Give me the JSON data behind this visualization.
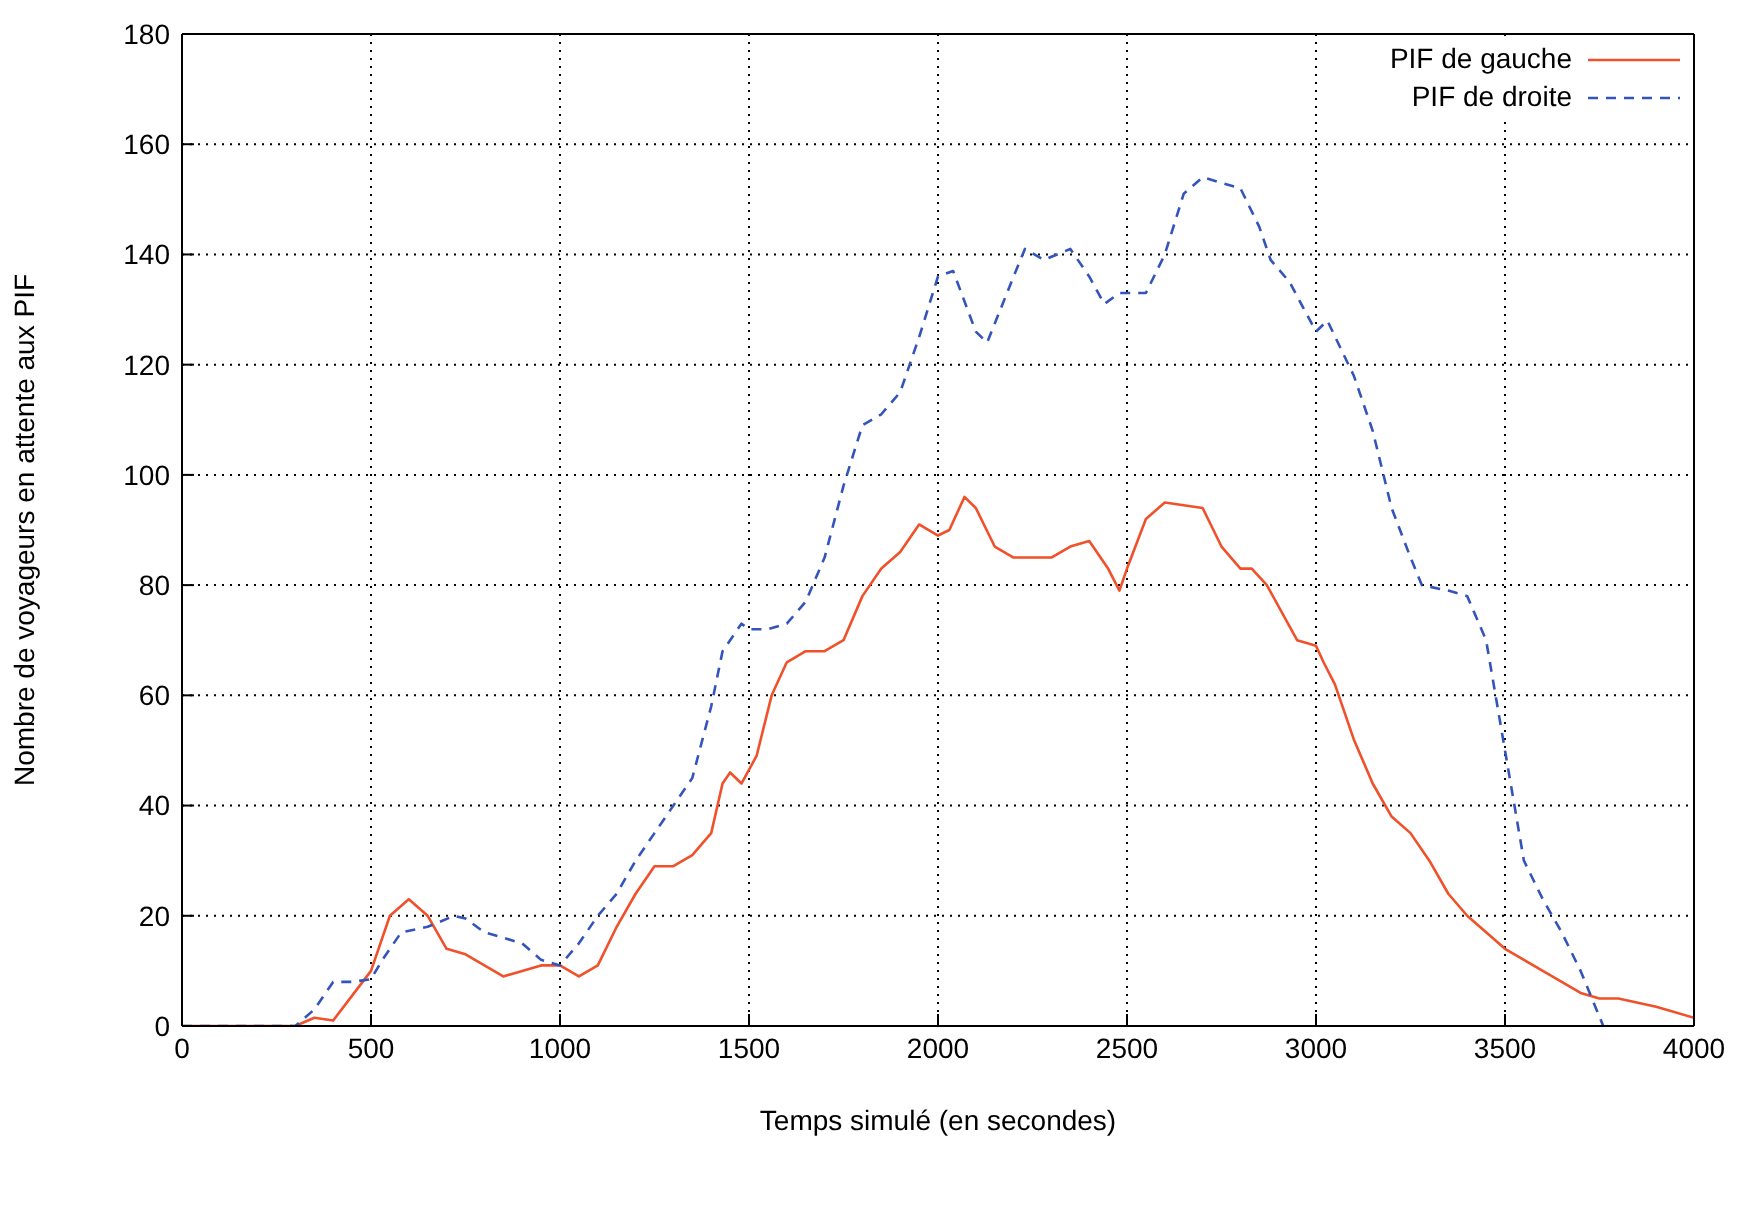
{
  "chart_data": {
    "type": "line",
    "xlabel": "Temps simulé (en secondes)",
    "ylabel": "Nombre de voyageurs en attente aux PIF",
    "xlim": [
      0,
      4000
    ],
    "xticks": [
      0,
      500,
      1000,
      1500,
      2000,
      2500,
      3000,
      3500,
      4000
    ],
    "ylim": [
      0,
      180
    ],
    "yticks": [
      0,
      20,
      40,
      60,
      80,
      100,
      120,
      140,
      160,
      180
    ],
    "grid": true,
    "legend": "top right",
    "series": [
      {
        "name": "PIF de gauche",
        "color": "#f0502a",
        "line_style": "solid",
        "x": [
          0,
          300,
          350,
          400,
          500,
          550,
          600,
          650,
          700,
          750,
          850,
          900,
          950,
          1000,
          1050,
          1100,
          1150,
          1200,
          1250,
          1300,
          1350,
          1400,
          1430,
          1450,
          1480,
          1520,
          1560,
          1600,
          1650,
          1700,
          1750,
          1800,
          1850,
          1900,
          1950,
          2000,
          2030,
          2070,
          2100,
          2150,
          2200,
          2300,
          2350,
          2400,
          2450,
          2480,
          2500,
          2550,
          2600,
          2700,
          2750,
          2800,
          2830,
          2870,
          2950,
          3000,
          3020,
          3050,
          3100,
          3150,
          3200,
          3250,
          3300,
          3350,
          3400,
          3450,
          3500,
          3550,
          3600,
          3650,
          3700,
          3750,
          3800,
          3900,
          4000
        ],
        "values": [
          0,
          0,
          1.5,
          1,
          10,
          20,
          23,
          20,
          14,
          13,
          9,
          10,
          11,
          11,
          9,
          11,
          18,
          24,
          29,
          29,
          31,
          35,
          44,
          46,
          44,
          49,
          60,
          66,
          68,
          68,
          70,
          78,
          83,
          86,
          91,
          89,
          90,
          96,
          94,
          87,
          85,
          85,
          87,
          88,
          83,
          79,
          83,
          92,
          95,
          94,
          87,
          83,
          83,
          80,
          70,
          69,
          66,
          62,
          52,
          44,
          38,
          35,
          30,
          24,
          20,
          17,
          14,
          12,
          10,
          8,
          6,
          5,
          5,
          3.5,
          1.5
        ]
      },
      {
        "name": "PIF de droite",
        "color": "#3355bb",
        "line_style": "dashed",
        "x": [
          0,
          300,
          350,
          400,
          450,
          500,
          530,
          580,
          650,
          720,
          750,
          800,
          900,
          950,
          1000,
          1050,
          1100,
          1150,
          1200,
          1250,
          1300,
          1350,
          1400,
          1430,
          1480,
          1500,
          1550,
          1600,
          1650,
          1700,
          1750,
          1800,
          1850,
          1900,
          1950,
          2000,
          2040,
          2100,
          2130,
          2200,
          2230,
          2280,
          2350,
          2400,
          2440,
          2480,
          2550,
          2600,
          2650,
          2700,
          2750,
          2800,
          2850,
          2880,
          2930,
          3000,
          3030,
          3100,
          3150,
          3200,
          3250,
          3280,
          3350,
          3400,
          3450,
          3500,
          3550,
          3600,
          3650,
          3700,
          3760
        ],
        "values": [
          0,
          0,
          3,
          8,
          8,
          8.5,
          12,
          17,
          18,
          20,
          19.5,
          17,
          15,
          12,
          11,
          15,
          20,
          24,
          30,
          35,
          40,
          45,
          58,
          68,
          73,
          72,
          72,
          73,
          77,
          85,
          98,
          109,
          111,
          115,
          125,
          136,
          137,
          126,
          124,
          136,
          141,
          139,
          141,
          136,
          131,
          133,
          133,
          140,
          151,
          154,
          153,
          152,
          145,
          139,
          135,
          126,
          128,
          118,
          108,
          94,
          85,
          80,
          79,
          78,
          70,
          50,
          30,
          23,
          17,
          10,
          0
        ]
      }
    ]
  }
}
